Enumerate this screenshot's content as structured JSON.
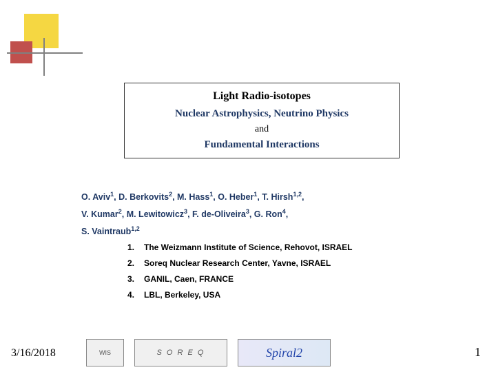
{
  "decor": {
    "yellow": "#f5d742",
    "red": "#c0504d",
    "line": "#808080"
  },
  "title": {
    "line1": "Light Radio-isotopes",
    "line2": "Nuclear Astrophysics, Neutrino Physics",
    "line3": "and",
    "line4": "Fundamental Interactions"
  },
  "authors_html": "O. Aviv<sup>1</sup>, D. Berkovits<sup>2</sup>, M. Hass<sup>1</sup>, O. Heber<sup>1</sup>, T. Hirsh<sup>1,2</sup>,<br>V. Kumar<sup>2</sup>, M. Lewitowicz<sup>3</sup>, F. de-Oliveira<sup>3</sup>, G. Ron<sup>4</sup>,<br>S. Vaintraub<sup>1,2</sup>",
  "affiliations": [
    {
      "num": "1.",
      "text": "The Weizmann Institute of Science, Rehovot, ISRAEL"
    },
    {
      "num": "2.",
      "text": "Soreq Nuclear Research Center, Yavne, ISRAEL"
    },
    {
      "num": "3.",
      "text": "GANIL, Caen, FRANCE"
    },
    {
      "num": "4.",
      "text": "LBL, Berkeley, USA"
    }
  ],
  "footer": {
    "date": "3/16/2018",
    "page": "1"
  },
  "logos": {
    "wis": "WIS",
    "soreq": "S O R E Q",
    "spiral": "Spiral2"
  },
  "colors": {
    "title_accent": "#1f3864",
    "author_text": "#1f3864"
  }
}
